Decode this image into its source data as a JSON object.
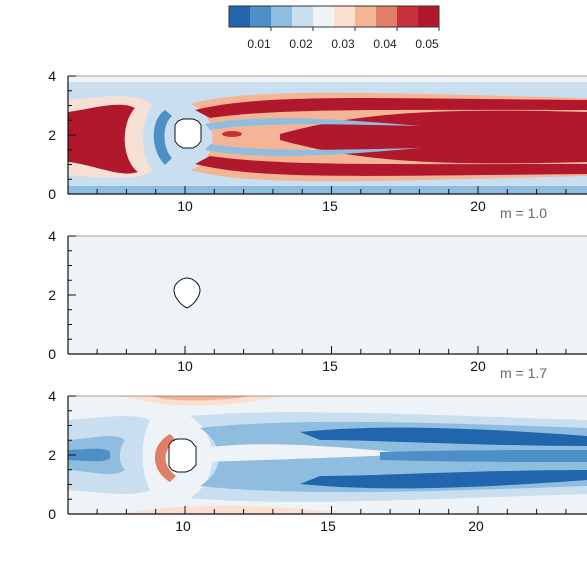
{
  "colorbar": {
    "colors": [
      "#2166ac",
      "#4d8fc6",
      "#8fbde0",
      "#c9dff0",
      "#eef3f7",
      "#fbe0d2",
      "#f4b596",
      "#e07f66",
      "#c8303b",
      "#b2182b"
    ],
    "labels": [
      "0.01",
      "0.02",
      "0.03",
      "0.04",
      "0.05"
    ]
  },
  "panels": [
    {
      "caption": "m = 1.0",
      "x_ticks": [
        "10",
        "15",
        "20"
      ],
      "y_ticks": [
        "0",
        "2",
        "4"
      ],
      "background": "#c9dff0",
      "field": [
        {
          "type": "upstream",
          "color": "#b2182b"
        },
        {
          "type": "wake_outer",
          "color": "#f4b596"
        },
        {
          "type": "wake_core",
          "color": "#b2182b"
        },
        {
          "type": "near_body",
          "color": "#4d8fc6"
        }
      ]
    },
    {
      "caption": "m = 1.7",
      "x_ticks": [
        "10",
        "15",
        "20"
      ],
      "y_ticks": [
        "0",
        "2",
        "4"
      ],
      "background": "#eef3f7",
      "field": []
    },
    {
      "caption": "",
      "x_ticks": [
        "10",
        "15",
        "20"
      ],
      "y_ticks": [
        "0",
        "2",
        "4"
      ],
      "background": "#eef3f7",
      "field": [
        {
          "type": "wake_blue",
          "color": "#2166ac"
        },
        {
          "type": "front_red",
          "color": "#e07f66"
        }
      ]
    }
  ]
}
